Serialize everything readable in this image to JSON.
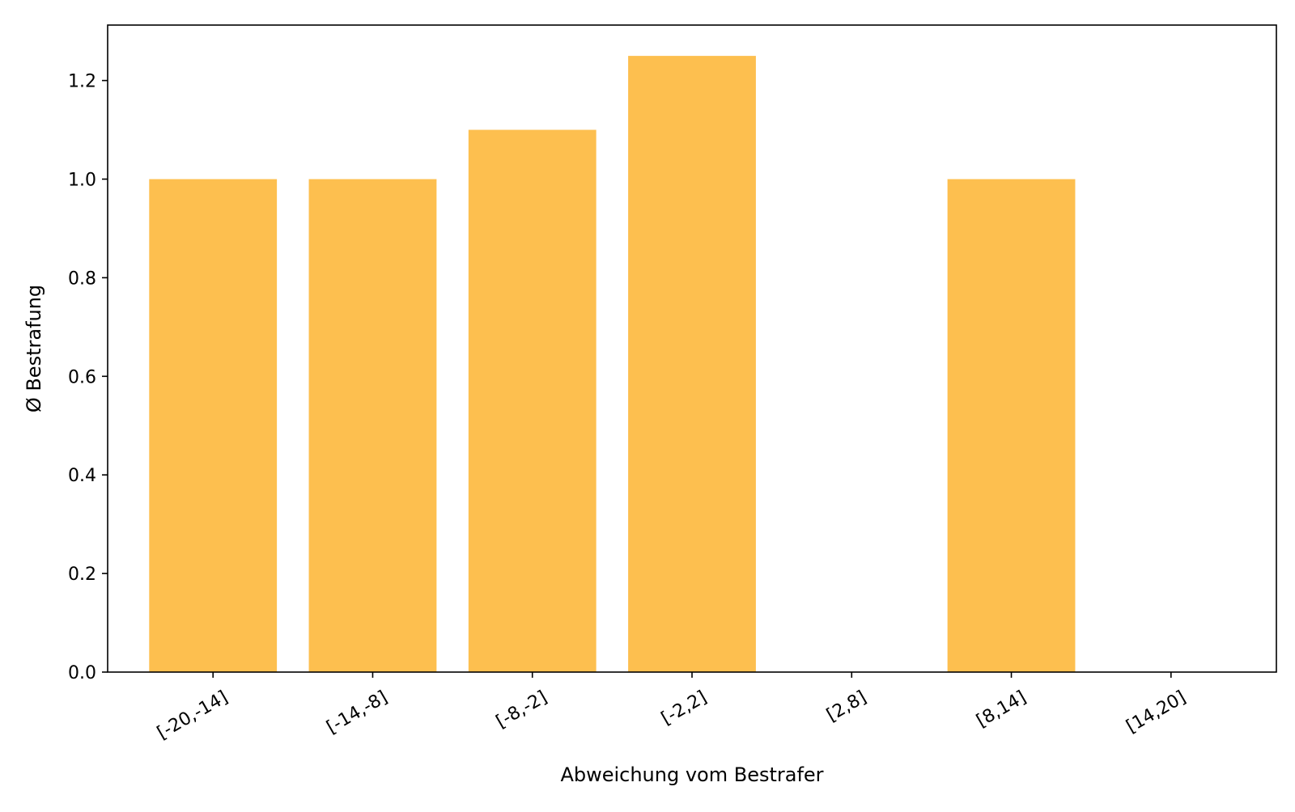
{
  "chart_data": {
    "type": "bar",
    "title": "",
    "xlabel": "Abweichung vom Bestrafer",
    "ylabel": "Ø Bestrafung",
    "categories": [
      "[-20,-14]",
      "[-14,-8]",
      "[-8,-2]",
      "[-2,2]",
      "[2,8]",
      "[8,14]",
      "[14,20]"
    ],
    "values": [
      1.0,
      1.0,
      1.1,
      1.25,
      0,
      1.0,
      0
    ],
    "ylim": [
      0,
      1.3125
    ],
    "yticks": [
      0.0,
      0.2,
      0.4,
      0.6,
      0.8,
      1.0,
      1.2
    ],
    "ytick_labels": [
      "0.0",
      "0.2",
      "0.4",
      "0.6",
      "0.8",
      "1.0",
      "1.2"
    ],
    "bar_color": "#FDBF4F",
    "grid": false,
    "legend": "none"
  }
}
